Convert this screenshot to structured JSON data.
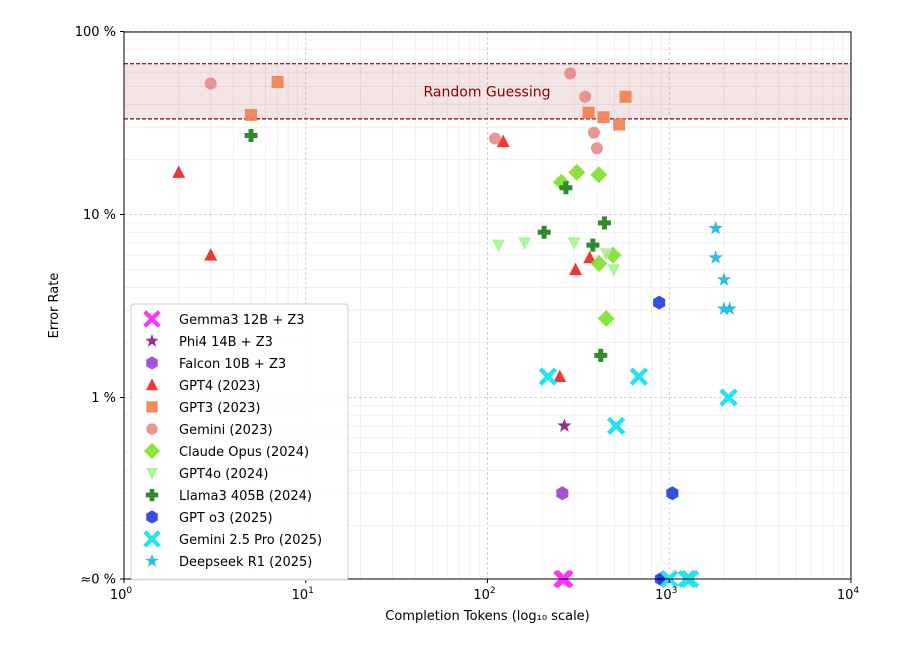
{
  "chart_data": {
    "type": "scatter",
    "title": "",
    "xlabel": "Completion Tokens (log₁₀ scale)",
    "ylabel": "Error Rate",
    "x_scale": "log",
    "xlim": [
      1,
      10000
    ],
    "x_ticks": [
      {
        "value": 1,
        "base": "10",
        "exp": "0"
      },
      {
        "value": 10,
        "base": "10",
        "exp": "1"
      },
      {
        "value": 100,
        "base": "10",
        "exp": "2"
      },
      {
        "value": 1000,
        "base": "10",
        "exp": "3"
      },
      {
        "value": 10000,
        "base": "10",
        "exp": "4"
      }
    ],
    "y_scale": "log with zero floor",
    "ylim": [
      0,
      100
    ],
    "y_ticks": [
      {
        "value": 100,
        "label": "100 %"
      },
      {
        "value": 10,
        "label": "10 %"
      },
      {
        "value": 1,
        "label": "1 %"
      },
      {
        "value": 0,
        "label": "≈0 %"
      }
    ],
    "grid": true,
    "band": {
      "label": "Random Guessing",
      "y_low": 33.3,
      "y_high": 66.7,
      "color": "#8b0000"
    },
    "legend_position": "lower-left",
    "series": [
      {
        "name": "Gemma3 12B + Z3",
        "marker": "x",
        "color": "#ff33ff",
        "points": [
          [
            258,
            0
          ],
          [
            265,
            0
          ]
        ]
      },
      {
        "name": "Phi4 14B + Z3",
        "marker": "star",
        "color": "#8e238e",
        "points": [
          [
            265,
            0.7
          ]
        ]
      },
      {
        "name": "Falcon 10B + Z3",
        "marker": "hexagon",
        "color": "#9b3fd1",
        "points": [
          [
            258,
            0.3
          ]
        ]
      },
      {
        "name": "GPT4  (2023)",
        "marker": "triangle",
        "color": "#ee2222",
        "points": [
          [
            2,
            17
          ],
          [
            3,
            6
          ],
          [
            122,
            25
          ],
          [
            250,
            1.3
          ],
          [
            305,
            5
          ],
          [
            365,
            5.8
          ]
        ]
      },
      {
        "name": "GPT3  (2023)",
        "marker": "square",
        "color": "#f0804f",
        "points": [
          [
            5,
            35
          ],
          [
            7,
            53
          ],
          [
            360,
            36
          ],
          [
            435,
            34
          ],
          [
            530,
            31
          ],
          [
            575,
            44
          ]
        ]
      },
      {
        "name": "Gemini (2023)",
        "marker": "circle",
        "color": "#e88383",
        "points": [
          [
            3,
            52
          ],
          [
            110,
            26
          ],
          [
            285,
            59
          ],
          [
            345,
            44
          ],
          [
            385,
            28
          ],
          [
            400,
            23
          ]
        ]
      },
      {
        "name": "Claude Opus  (2024)",
        "marker": "diamond",
        "color": "#7fe02a",
        "points": [
          [
            255,
            15
          ],
          [
            310,
            17
          ],
          [
            410,
            16.5
          ],
          [
            410,
            5.4
          ],
          [
            490,
            6
          ],
          [
            450,
            2.7
          ]
        ]
      },
      {
        "name": "GPT4o  (2024)",
        "marker": "triangle-down",
        "color": "#a6f28f",
        "points": [
          [
            115,
            6.8
          ],
          [
            160,
            7
          ],
          [
            300,
            7
          ],
          [
            450,
            6.1
          ],
          [
            495,
            5
          ]
        ]
      },
      {
        "name": "Llama3 405B  (2024)",
        "marker": "plus",
        "color": "#2e8b2e",
        "points": [
          [
            5,
            27
          ],
          [
            270,
            14
          ],
          [
            205,
            8
          ],
          [
            440,
            9
          ],
          [
            380,
            6.8
          ],
          [
            420,
            1.7
          ]
        ]
      },
      {
        "name": "GPT o3 (2025)",
        "marker": "hexagon",
        "color": "#1f3de0",
        "points": [
          [
            880,
            3.3
          ],
          [
            1040,
            0.3
          ],
          [
            900,
            0
          ],
          [
            930,
            0
          ]
        ]
      },
      {
        "name": "Gemini 2.5 Pro (2025)",
        "marker": "x",
        "color": "#22e5f0",
        "points": [
          [
            215,
            1.3
          ],
          [
            680,
            1.3
          ],
          [
            510,
            0.7
          ],
          [
            2120,
            1
          ],
          [
            1000,
            0
          ],
          [
            1250,
            0
          ],
          [
            1300,
            0
          ]
        ]
      },
      {
        "name": "Deepseek  R1 (2025)",
        "marker": "star",
        "color": "#25b8e8",
        "points": [
          [
            1800,
            8.4
          ],
          [
            1800,
            5.8
          ],
          [
            2000,
            4.4
          ],
          [
            2000,
            3.05
          ],
          [
            2150,
            3.05
          ]
        ]
      }
    ]
  }
}
